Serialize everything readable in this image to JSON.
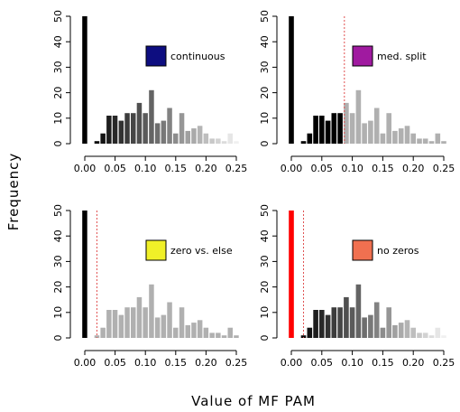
{
  "figure": {
    "ylabel": "Frequency",
    "xlabel": "Value of MF PAM"
  },
  "chart_data": [
    {
      "type": "bar",
      "legend": {
        "label": "continuous",
        "color": "#0d0d80",
        "placement": "top-right"
      },
      "coloring": "gradient",
      "threshold": null,
      "bin_width": 0.01,
      "xlim": [
        0,
        0.25
      ],
      "ylim": [
        0,
        50
      ],
      "x_ticks": [
        "0.00",
        "0.05",
        "0.10",
        "0.15",
        "0.20",
        "0.25"
      ],
      "y_ticks": [
        "0",
        "10",
        "20",
        "30",
        "40",
        "50"
      ],
      "bins": [
        {
          "x": 0.0,
          "count": 50,
          "color": "#000000"
        },
        {
          "x": 0.02,
          "count": 1,
          "color": "#0a0a0a"
        },
        {
          "x": 0.03,
          "count": 4,
          "color": "#141414"
        },
        {
          "x": 0.04,
          "count": 11,
          "color": "#1e1e1e"
        },
        {
          "x": 0.05,
          "count": 11,
          "color": "#282828"
        },
        {
          "x": 0.06,
          "count": 9,
          "color": "#323232"
        },
        {
          "x": 0.07,
          "count": 12,
          "color": "#3c3c3c"
        },
        {
          "x": 0.08,
          "count": 12,
          "color": "#464646"
        },
        {
          "x": 0.09,
          "count": 16,
          "color": "#505050"
        },
        {
          "x": 0.1,
          "count": 12,
          "color": "#5a5a5a"
        },
        {
          "x": 0.11,
          "count": 21,
          "color": "#646464"
        },
        {
          "x": 0.12,
          "count": 8,
          "color": "#6e6e6e"
        },
        {
          "x": 0.13,
          "count": 9,
          "color": "#787878"
        },
        {
          "x": 0.14,
          "count": 14,
          "color": "#828282"
        },
        {
          "x": 0.15,
          "count": 4,
          "color": "#8c8c8c"
        },
        {
          "x": 0.16,
          "count": 12,
          "color": "#969696"
        },
        {
          "x": 0.17,
          "count": 5,
          "color": "#a0a0a0"
        },
        {
          "x": 0.18,
          "count": 6,
          "color": "#aaaaaa"
        },
        {
          "x": 0.19,
          "count": 7,
          "color": "#b4b4b4"
        },
        {
          "x": 0.2,
          "count": 4,
          "color": "#bebebe"
        },
        {
          "x": 0.21,
          "count": 2,
          "color": "#c8c8c8"
        },
        {
          "x": 0.22,
          "count": 2,
          "color": "#d2d2d2"
        },
        {
          "x": 0.23,
          "count": 1,
          "color": "#dcdcdc"
        },
        {
          "x": 0.24,
          "count": 4,
          "color": "#e6e6e6"
        },
        {
          "x": 0.25,
          "count": 1,
          "color": "#f0f0f0"
        }
      ]
    },
    {
      "type": "bar",
      "legend": {
        "label": "med. split",
        "color": "#a01aa0",
        "placement": "top-right"
      },
      "coloring": "split",
      "threshold": 0.087,
      "bin_width": 0.01,
      "xlim": [
        0,
        0.25
      ],
      "ylim": [
        0,
        50
      ],
      "x_ticks": [
        "0.00",
        "0.05",
        "0.10",
        "0.15",
        "0.20",
        "0.25"
      ],
      "y_ticks": [
        "0",
        "10",
        "20",
        "30",
        "40",
        "50"
      ],
      "bins": [
        {
          "x": 0.0,
          "count": 50,
          "color": "#000000"
        },
        {
          "x": 0.02,
          "count": 1,
          "color": "#000000"
        },
        {
          "x": 0.03,
          "count": 4,
          "color": "#000000"
        },
        {
          "x": 0.04,
          "count": 11,
          "color": "#000000"
        },
        {
          "x": 0.05,
          "count": 11,
          "color": "#000000"
        },
        {
          "x": 0.06,
          "count": 9,
          "color": "#000000"
        },
        {
          "x": 0.07,
          "count": 12,
          "color": "#000000"
        },
        {
          "x": 0.08,
          "count": 12,
          "color": "#000000"
        },
        {
          "x": 0.09,
          "count": 16,
          "color": "#b0b0b0"
        },
        {
          "x": 0.1,
          "count": 12,
          "color": "#b0b0b0"
        },
        {
          "x": 0.11,
          "count": 21,
          "color": "#b0b0b0"
        },
        {
          "x": 0.12,
          "count": 8,
          "color": "#b0b0b0"
        },
        {
          "x": 0.13,
          "count": 9,
          "color": "#b0b0b0"
        },
        {
          "x": 0.14,
          "count": 14,
          "color": "#b0b0b0"
        },
        {
          "x": 0.15,
          "count": 4,
          "color": "#b0b0b0"
        },
        {
          "x": 0.16,
          "count": 12,
          "color": "#b0b0b0"
        },
        {
          "x": 0.17,
          "count": 5,
          "color": "#b0b0b0"
        },
        {
          "x": 0.18,
          "count": 6,
          "color": "#b0b0b0"
        },
        {
          "x": 0.19,
          "count": 7,
          "color": "#b0b0b0"
        },
        {
          "x": 0.2,
          "count": 4,
          "color": "#b0b0b0"
        },
        {
          "x": 0.21,
          "count": 2,
          "color": "#b0b0b0"
        },
        {
          "x": 0.22,
          "count": 2,
          "color": "#b0b0b0"
        },
        {
          "x": 0.23,
          "count": 1,
          "color": "#b0b0b0"
        },
        {
          "x": 0.24,
          "count": 4,
          "color": "#b0b0b0"
        },
        {
          "x": 0.25,
          "count": 1,
          "color": "#b0b0b0"
        }
      ]
    },
    {
      "type": "bar",
      "legend": {
        "label": "zero vs. else",
        "color": "#f0f028",
        "placement": "top-right"
      },
      "coloring": "zero-vs-else",
      "threshold": 0.02,
      "bin_width": 0.01,
      "xlim": [
        0,
        0.25
      ],
      "ylim": [
        0,
        50
      ],
      "x_ticks": [
        "0.00",
        "0.05",
        "0.10",
        "0.15",
        "0.20",
        "0.25"
      ],
      "y_ticks": [
        "0",
        "10",
        "20",
        "30",
        "40",
        "50"
      ],
      "bins": [
        {
          "x": 0.0,
          "count": 50,
          "color": "#000000"
        },
        {
          "x": 0.02,
          "count": 1,
          "color": "#b0b0b0"
        },
        {
          "x": 0.03,
          "count": 4,
          "color": "#b0b0b0"
        },
        {
          "x": 0.04,
          "count": 11,
          "color": "#b0b0b0"
        },
        {
          "x": 0.05,
          "count": 11,
          "color": "#b0b0b0"
        },
        {
          "x": 0.06,
          "count": 9,
          "color": "#b0b0b0"
        },
        {
          "x": 0.07,
          "count": 12,
          "color": "#b0b0b0"
        },
        {
          "x": 0.08,
          "count": 12,
          "color": "#b0b0b0"
        },
        {
          "x": 0.09,
          "count": 16,
          "color": "#b0b0b0"
        },
        {
          "x": 0.1,
          "count": 12,
          "color": "#b0b0b0"
        },
        {
          "x": 0.11,
          "count": 21,
          "color": "#b0b0b0"
        },
        {
          "x": 0.12,
          "count": 8,
          "color": "#b0b0b0"
        },
        {
          "x": 0.13,
          "count": 9,
          "color": "#b0b0b0"
        },
        {
          "x": 0.14,
          "count": 14,
          "color": "#b0b0b0"
        },
        {
          "x": 0.15,
          "count": 4,
          "color": "#b0b0b0"
        },
        {
          "x": 0.16,
          "count": 12,
          "color": "#b0b0b0"
        },
        {
          "x": 0.17,
          "count": 5,
          "color": "#b0b0b0"
        },
        {
          "x": 0.18,
          "count": 6,
          "color": "#b0b0b0"
        },
        {
          "x": 0.19,
          "count": 7,
          "color": "#b0b0b0"
        },
        {
          "x": 0.2,
          "count": 4,
          "color": "#b0b0b0"
        },
        {
          "x": 0.21,
          "count": 2,
          "color": "#b0b0b0"
        },
        {
          "x": 0.22,
          "count": 2,
          "color": "#b0b0b0"
        },
        {
          "x": 0.23,
          "count": 1,
          "color": "#b0b0b0"
        },
        {
          "x": 0.24,
          "count": 4,
          "color": "#b0b0b0"
        },
        {
          "x": 0.25,
          "count": 1,
          "color": "#b0b0b0"
        }
      ]
    },
    {
      "type": "bar",
      "legend": {
        "label": "no zeros",
        "color": "#f07050",
        "placement": "top-right"
      },
      "coloring": "zero-highlight",
      "threshold": 0.02,
      "bin_width": 0.01,
      "xlim": [
        0,
        0.25
      ],
      "ylim": [
        0,
        50
      ],
      "x_ticks": [
        "0.00",
        "0.05",
        "0.10",
        "0.15",
        "0.20",
        "0.25"
      ],
      "y_ticks": [
        "0",
        "10",
        "20",
        "30",
        "40",
        "50"
      ],
      "bins": [
        {
          "x": 0.0,
          "count": 50,
          "color": "#ff0000"
        },
        {
          "x": 0.02,
          "count": 1,
          "color": "#0a0a0a"
        },
        {
          "x": 0.03,
          "count": 4,
          "color": "#141414"
        },
        {
          "x": 0.04,
          "count": 11,
          "color": "#1e1e1e"
        },
        {
          "x": 0.05,
          "count": 11,
          "color": "#282828"
        },
        {
          "x": 0.06,
          "count": 9,
          "color": "#323232"
        },
        {
          "x": 0.07,
          "count": 12,
          "color": "#3c3c3c"
        },
        {
          "x": 0.08,
          "count": 12,
          "color": "#464646"
        },
        {
          "x": 0.09,
          "count": 16,
          "color": "#505050"
        },
        {
          "x": 0.1,
          "count": 12,
          "color": "#5a5a5a"
        },
        {
          "x": 0.11,
          "count": 21,
          "color": "#646464"
        },
        {
          "x": 0.12,
          "count": 8,
          "color": "#6e6e6e"
        },
        {
          "x": 0.13,
          "count": 9,
          "color": "#787878"
        },
        {
          "x": 0.14,
          "count": 14,
          "color": "#828282"
        },
        {
          "x": 0.15,
          "count": 4,
          "color": "#8c8c8c"
        },
        {
          "x": 0.16,
          "count": 12,
          "color": "#969696"
        },
        {
          "x": 0.17,
          "count": 5,
          "color": "#a0a0a0"
        },
        {
          "x": 0.18,
          "count": 6,
          "color": "#aaaaaa"
        },
        {
          "x": 0.19,
          "count": 7,
          "color": "#b4b4b4"
        },
        {
          "x": 0.2,
          "count": 4,
          "color": "#bebebe"
        },
        {
          "x": 0.21,
          "count": 2,
          "color": "#c8c8c8"
        },
        {
          "x": 0.22,
          "count": 2,
          "color": "#d2d2d2"
        },
        {
          "x": 0.23,
          "count": 1,
          "color": "#dcdcdc"
        },
        {
          "x": 0.24,
          "count": 4,
          "color": "#e6e6e6"
        },
        {
          "x": 0.25,
          "count": 1,
          "color": "#f0f0f0"
        }
      ]
    }
  ]
}
